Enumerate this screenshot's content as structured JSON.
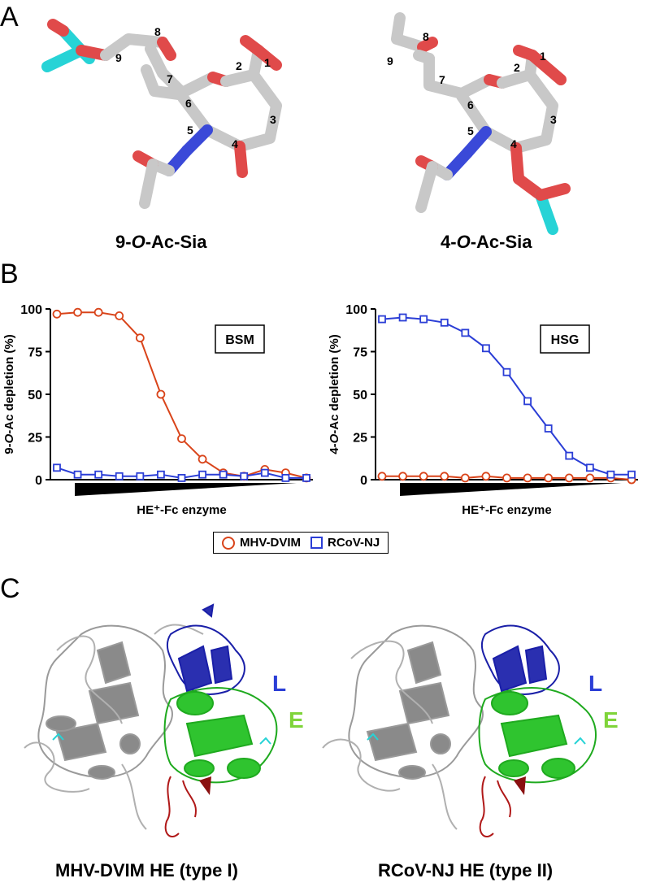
{
  "panels": {
    "a": "A",
    "b": "B",
    "c": "C"
  },
  "molecules": [
    {
      "caption_prefix": "9-",
      "caption_italic": "O",
      "caption_suffix": "-Ac-Sia",
      "atoms": [
        "1",
        "2",
        "3",
        "4",
        "5",
        "6",
        "7",
        "8",
        "9"
      ]
    },
    {
      "caption_prefix": "4-",
      "caption_italic": "O",
      "caption_suffix": "-Ac-Sia",
      "atoms": [
        "1",
        "2",
        "3",
        "4",
        "5",
        "6",
        "7",
        "8",
        "9"
      ]
    }
  ],
  "legend": {
    "series1": "MHV-DVIM",
    "series2": "RCoV-NJ"
  },
  "colors": {
    "series1": "#d9441a",
    "series2": "#2b3ed6"
  },
  "chart_data": [
    {
      "type": "line",
      "box_label": "BSM",
      "ylabel_prefix": "9-",
      "ylabel_italic": "O",
      "ylabel_suffix": "-Ac depletion (%)",
      "xlabel": "HE⁺-Fc enzyme",
      "ylim": [
        0,
        100
      ],
      "yticks": [
        "0",
        "25",
        "50",
        "75",
        "100"
      ],
      "x": [
        1,
        2,
        3,
        4,
        5,
        6,
        7,
        8,
        9,
        10,
        11,
        12,
        13
      ],
      "series": [
        {
          "name": "MHV-DVIM",
          "values": [
            97,
            98,
            98,
            96,
            83,
            50,
            24,
            12,
            4,
            2,
            6,
            4,
            1
          ]
        },
        {
          "name": "RCoV-NJ",
          "values": [
            7,
            3,
            3,
            2,
            2,
            3,
            1,
            3,
            3,
            2,
            4,
            1,
            1
          ]
        }
      ]
    },
    {
      "type": "line",
      "box_label": "HSG",
      "ylabel_prefix": "4-",
      "ylabel_italic": "O",
      "ylabel_suffix": "-Ac depletion (%)",
      "xlabel": "HE⁺-Fc enzyme",
      "ylim": [
        0,
        100
      ],
      "yticks": [
        "0",
        "25",
        "50",
        "75",
        "100"
      ],
      "x": [
        1,
        2,
        3,
        4,
        5,
        6,
        7,
        8,
        9,
        10,
        11,
        12,
        13
      ],
      "series": [
        {
          "name": "MHV-DVIM",
          "values": [
            2,
            2,
            2,
            2,
            1,
            2,
            1,
            1,
            1,
            1,
            1,
            1,
            0
          ]
        },
        {
          "name": "RCoV-NJ",
          "values": [
            94,
            95,
            94,
            92,
            86,
            77,
            63,
            46,
            30,
            14,
            7,
            3,
            3
          ]
        }
      ]
    }
  ],
  "structures": [
    {
      "caption": "MHV-DVIM HE (type I)",
      "domain_l": "L",
      "domain_e": "E"
    },
    {
      "caption": "RCoV-NJ HE (type II)",
      "domain_l": "L",
      "domain_e": "E"
    }
  ]
}
